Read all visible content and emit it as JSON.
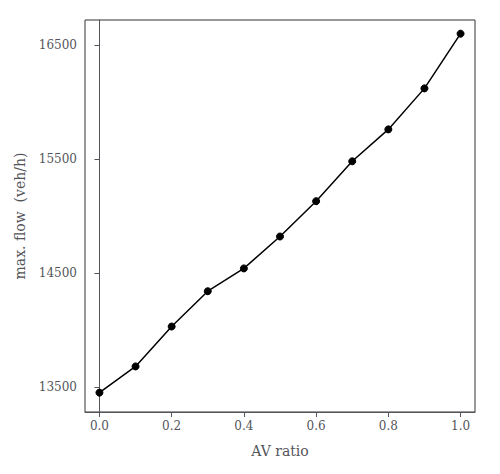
{
  "chart_data": {
    "type": "line",
    "xlabel": "AV ratio",
    "ylabel": "max. flow  (veh/h)",
    "x": [
      0.0,
      0.1,
      0.2,
      0.3,
      0.4,
      0.5,
      0.6,
      0.7,
      0.8,
      0.9,
      1.0
    ],
    "values": [
      13450,
      13680,
      14030,
      14340,
      14540,
      14820,
      15130,
      15480,
      15760,
      16120,
      16600
    ],
    "xlim": [
      -0.04,
      1.04
    ],
    "ylim": [
      13280,
      16720
    ],
    "xticks": [
      {
        "value": 0.0,
        "label": "0.0"
      },
      0.2,
      0.4,
      0.6,
      0.8,
      {
        "value": 1.0,
        "label": "1.0"
      }
    ],
    "yticks": [
      13500,
      14500,
      15500,
      16500
    ],
    "color": "#000000",
    "marker": "circle",
    "grid": false
  }
}
